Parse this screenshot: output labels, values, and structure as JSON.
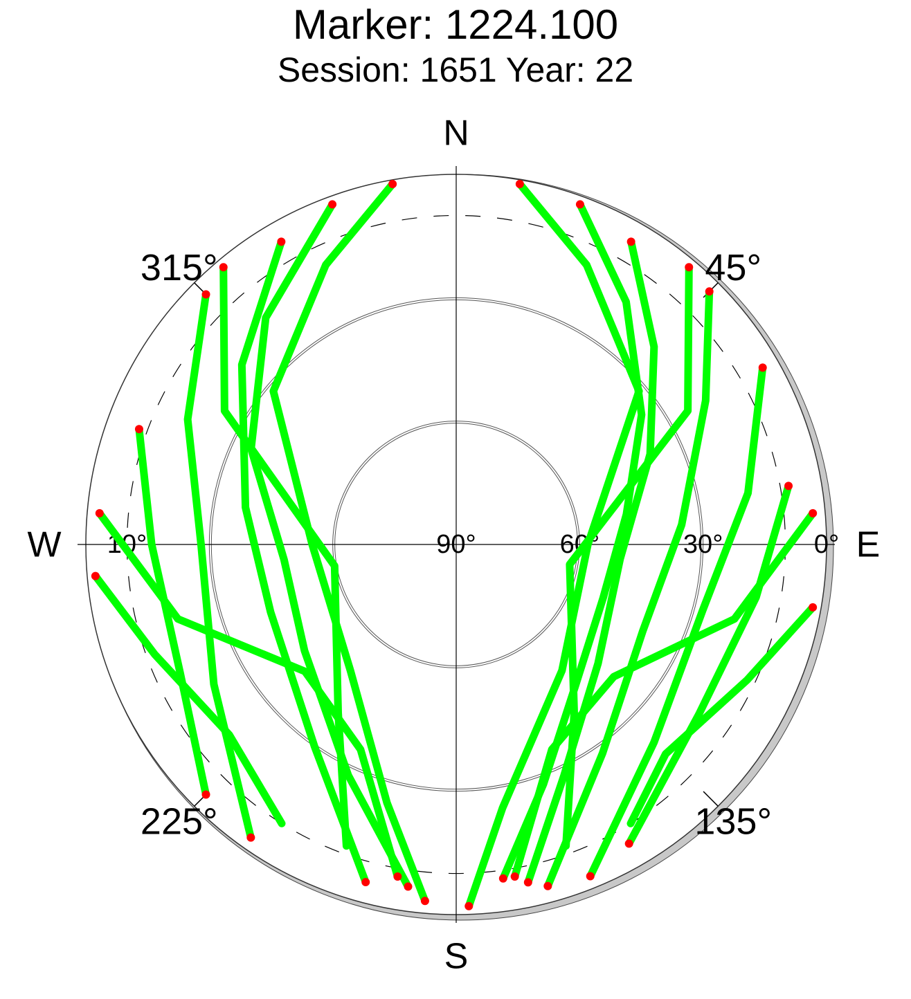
{
  "chart_data": {
    "type": "skyplot",
    "title": "Marker: 1224.100",
    "subtitle": "Session: 1651 Year: 22",
    "azimuth_ticks": [
      {
        "value": 0,
        "label": "N"
      },
      {
        "value": 45,
        "label": "45°"
      },
      {
        "value": 90,
        "label": "E"
      },
      {
        "value": 135,
        "label": "135°"
      },
      {
        "value": 180,
        "label": "S"
      },
      {
        "value": 225,
        "label": "225°"
      },
      {
        "value": 270,
        "label": "W"
      },
      {
        "value": 315,
        "label": "315°"
      }
    ],
    "elevation_ticks": [
      {
        "value": 0,
        "label": "0°"
      },
      {
        "value": 30,
        "label": "30°"
      },
      {
        "value": 60,
        "label": "60°"
      },
      {
        "value": 90,
        "label": "90°"
      }
    ],
    "elevation_mask": {
      "value": 10,
      "label": "10°"
    },
    "track_color": "#00ff00",
    "below_mask_color": "#ff0000",
    "tracks": [
      {
        "azimuth": [
          20,
          35,
          55,
          80,
          110,
          140,
          160,
          172
        ],
        "elevation": [
          2,
          18,
          35,
          48,
          52,
          45,
          28,
          8
        ]
      },
      {
        "azimuth": [
          30,
          45,
          65,
          95,
          130,
          155,
          168
        ],
        "elevation": [
          5,
          22,
          38,
          50,
          45,
          28,
          6
        ]
      },
      {
        "azimuth": [
          45,
          60,
          85,
          115,
          145,
          165
        ],
        "elevation": [
          3,
          20,
          35,
          40,
          28,
          4
        ]
      },
      {
        "azimuth": [
          60,
          80,
          105,
          135,
          158
        ],
        "elevation": [
          4,
          18,
          28,
          22,
          3
        ]
      },
      {
        "azimuth": [
          80,
          100,
          125,
          150
        ],
        "elevation": [
          8,
          16,
          18,
          6
        ]
      },
      {
        "azimuth": [
          340,
          320,
          295,
          265,
          235,
          205,
          188
        ],
        "elevation": [
          2,
          18,
          35,
          48,
          45,
          28,
          6
        ]
      },
      {
        "azimuth": [
          330,
          310,
          280,
          250,
          215,
          195
        ],
        "elevation": [
          5,
          22,
          38,
          42,
          30,
          5
        ]
      },
      {
        "azimuth": [
          315,
          295,
          270,
          240,
          215
        ],
        "elevation": [
          4,
          18,
          28,
          22,
          3
        ]
      },
      {
        "azimuth": [
          290,
          270,
          245,
          225
        ],
        "elevation": [
          8,
          16,
          16,
          4
        ]
      },
      {
        "azimuth": [
          350,
          335,
          310,
          270,
          220,
          195,
          185
        ],
        "elevation": [
          1,
          15,
          32,
          55,
          50,
          25,
          3
        ]
      },
      {
        "azimuth": [
          10,
          25,
          50,
          90,
          140,
          170,
          178
        ],
        "elevation": [
          1,
          15,
          32,
          58,
          50,
          25,
          2
        ]
      },
      {
        "azimuth": [
          275,
          255,
          230,
          205,
          190
        ],
        "elevation": [
          3,
          20,
          42,
          35,
          8
        ]
      },
      {
        "azimuth": [
          85,
          105,
          130,
          155,
          170
        ],
        "elevation": [
          3,
          20,
          40,
          35,
          8
        ]
      },
      {
        "azimuth": [
          320,
          300,
          260,
          215,
          200
        ],
        "elevation": [
          2,
          25,
          60,
          40,
          12
        ]
      },
      {
        "azimuth": [
          40,
          60,
          100,
          145,
          160
        ],
        "elevation": [
          2,
          25,
          62,
          40,
          12
        ]
      },
      {
        "azimuth": [
          265,
          250,
          230,
          212
        ],
        "elevation": [
          2,
          12,
          18,
          10
        ]
      },
      {
        "azimuth": [
          100,
          115,
          135,
          148
        ],
        "elevation": [
          2,
          12,
          18,
          10
        ]
      }
    ]
  }
}
